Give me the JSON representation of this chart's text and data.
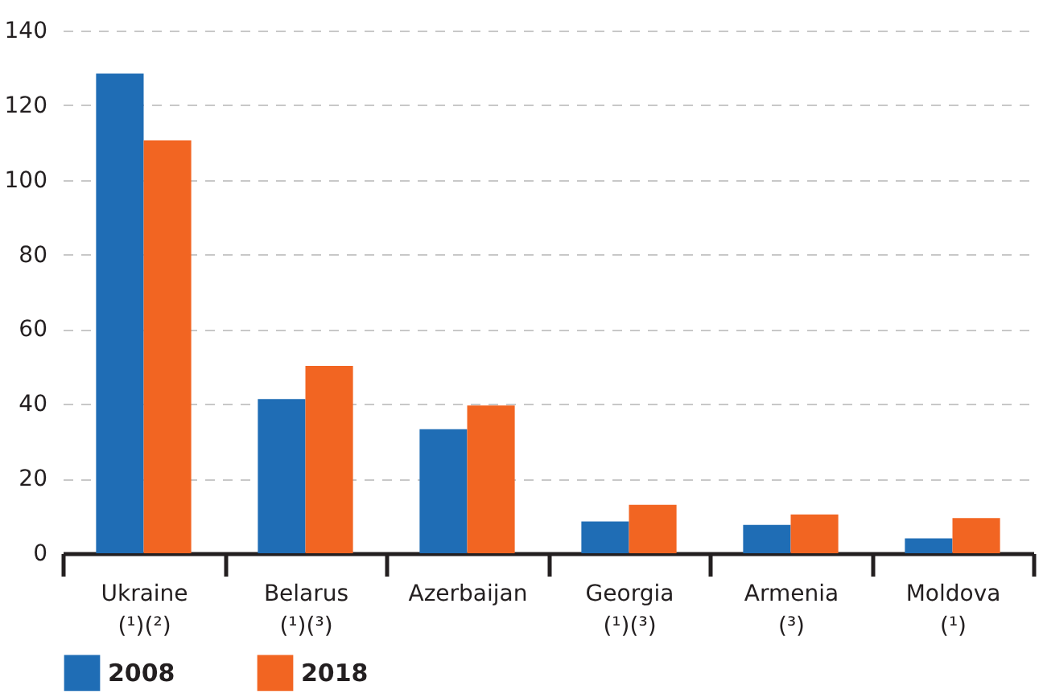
{
  "chart_data": {
    "type": "bar",
    "categories": [
      "Ukraine\n(¹)(²)",
      "Belarus\n(¹)(³)",
      "Azerbaijan",
      "Georgia\n(¹)(³)",
      "Armenia\n(³)",
      "Moldova\n(¹)"
    ],
    "series": [
      {
        "name": "2008",
        "color": "#1f6db5",
        "values": [
          128.5,
          41.3,
          33.2,
          8.5,
          7.6,
          4
        ]
      },
      {
        "name": "2018",
        "color": "#f26522",
        "values": [
          110.6,
          50.2,
          39.6,
          13,
          10.4,
          9.4
        ]
      }
    ],
    "ylim": [
      0,
      140
    ],
    "yticks": [
      0,
      20,
      40,
      60,
      80,
      100,
      120,
      140
    ],
    "grid": "y",
    "legend": "bottom"
  }
}
